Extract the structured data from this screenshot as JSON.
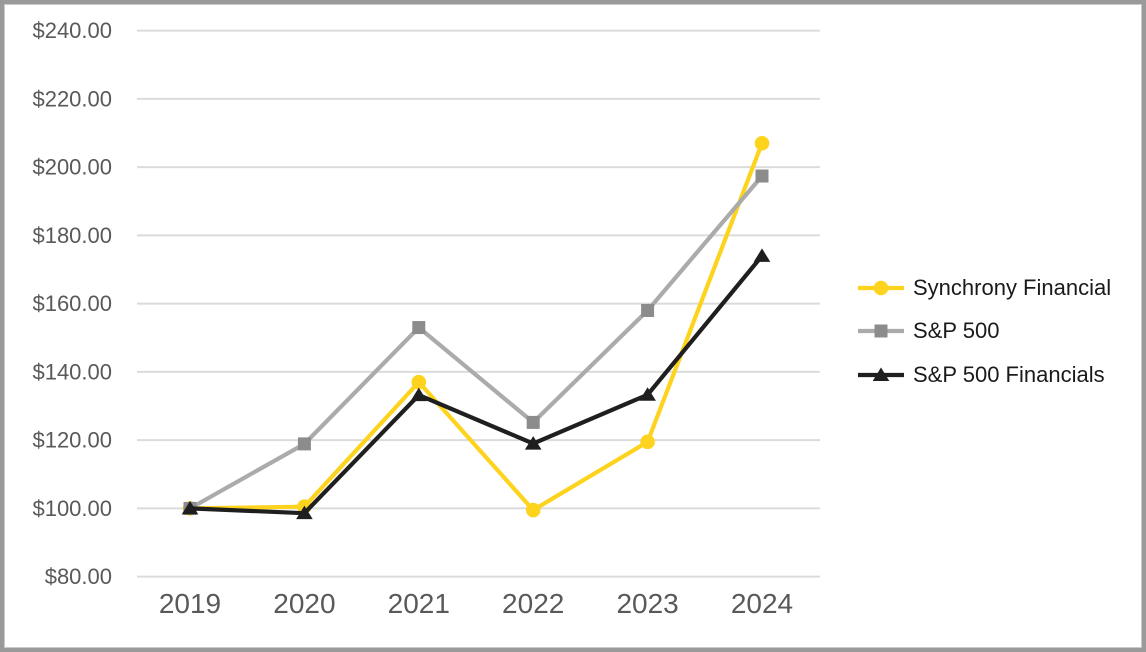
{
  "page": {
    "background_color": "#ffffff",
    "frame_border_color": "#9a9a9a"
  },
  "chart_data": {
    "type": "line",
    "title": "",
    "xlabel": "",
    "ylabel": "",
    "x_categories": [
      "2019",
      "2020",
      "2021",
      "2022",
      "2023",
      "2024"
    ],
    "y_axis": {
      "min": 80,
      "max": 240,
      "tick_step": 20,
      "ticks": [
        {
          "value": 240,
          "label": "$240.00"
        },
        {
          "value": 220,
          "label": "$220.00"
        },
        {
          "value": 200,
          "label": "$200.00"
        },
        {
          "value": 180,
          "label": "$180.00"
        },
        {
          "value": 160,
          "label": "$160.00"
        },
        {
          "value": 140,
          "label": "$140.00"
        },
        {
          "value": 120,
          "label": "$120.00"
        },
        {
          "value": 100,
          "label": "$100.00"
        },
        {
          "value": 80,
          "label": "$80.00"
        }
      ]
    },
    "grid": "horizontal-only",
    "legend_position": "right",
    "axis_text_color": "#595959",
    "gridline_color": "#dbdbdb",
    "series": [
      {
        "name": "Synchrony Financial",
        "marker": "circle",
        "line_color": "#fdd31e",
        "marker_color": "#fdd31e",
        "values": [
          100,
          100.5,
          137,
          99.5,
          119.5,
          207
        ]
      },
      {
        "name": "S&P 500",
        "marker": "square",
        "line_color": "#ababab",
        "marker_color": "#8c8c8c",
        "values": [
          100,
          118.9,
          153,
          125.2,
          158,
          197.4
        ]
      },
      {
        "name": "S&P 500 Financials",
        "marker": "triangle",
        "line_color": "#1f1f1f",
        "marker_color": "#1f1f1f",
        "values": [
          100,
          98.6,
          133.2,
          119,
          133.3,
          174
        ]
      }
    ]
  }
}
